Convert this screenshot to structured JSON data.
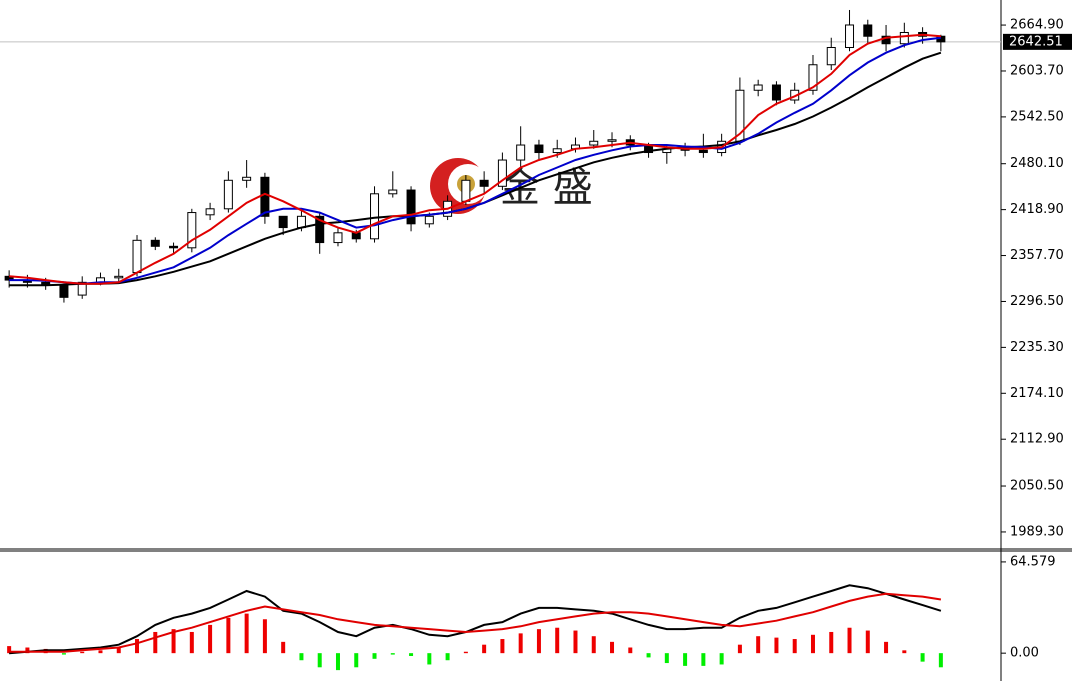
{
  "chart_data": [
    {
      "type": "candlestick",
      "open": [
        2330,
        2325,
        2322,
        2318,
        2305,
        2322,
        2328,
        2335,
        2378,
        2370,
        2368,
        2412,
        2420,
        2458,
        2462,
        2410,
        2395,
        2410,
        2375,
        2388,
        2380,
        2440,
        2445,
        2400,
        2410,
        2430,
        2458,
        2450,
        2485,
        2505,
        2495,
        2500,
        2505,
        2510,
        2512,
        2505,
        2495,
        2500,
        2498,
        2495,
        2510,
        2578,
        2585,
        2565,
        2578,
        2612,
        2635,
        2665,
        2650,
        2640,
        2655,
        2650
      ],
      "high": [
        2338,
        2332,
        2328,
        2320,
        2330,
        2335,
        2340,
        2385,
        2382,
        2375,
        2420,
        2428,
        2470,
        2485,
        2468,
        2405,
        2418,
        2415,
        2395,
        2392,
        2450,
        2470,
        2450,
        2415,
        2438,
        2465,
        2470,
        2495,
        2530,
        2512,
        2512,
        2515,
        2525,
        2522,
        2518,
        2508,
        2505,
        2508,
        2520,
        2520,
        2595,
        2592,
        2590,
        2588,
        2625,
        2648,
        2685,
        2672,
        2665,
        2668,
        2662,
        2652
      ],
      "low": [
        2315,
        2315,
        2312,
        2295,
        2300,
        2318,
        2322,
        2330,
        2365,
        2360,
        2362,
        2405,
        2415,
        2448,
        2400,
        2385,
        2390,
        2360,
        2370,
        2375,
        2375,
        2435,
        2390,
        2395,
        2405,
        2425,
        2440,
        2445,
        2475,
        2485,
        2488,
        2495,
        2500,
        2502,
        2498,
        2488,
        2480,
        2490,
        2488,
        2490,
        2505,
        2570,
        2558,
        2560,
        2572,
        2605,
        2630,
        2640,
        2630,
        2635,
        2640,
        2630
      ],
      "close": [
        2325,
        2322,
        2318,
        2302,
        2322,
        2328,
        2330,
        2378,
        2370,
        2368,
        2415,
        2420,
        2458,
        2462,
        2410,
        2395,
        2410,
        2375,
        2388,
        2380,
        2440,
        2445,
        2400,
        2410,
        2430,
        2458,
        2450,
        2485,
        2505,
        2495,
        2500,
        2505,
        2510,
        2512,
        2505,
        2495,
        2500,
        2498,
        2495,
        2510,
        2578,
        2585,
        2565,
        2578,
        2612,
        2635,
        2665,
        2650,
        2640,
        2655,
        2650,
        2642.51
      ],
      "up_color": "#ffffff",
      "down_color": "#000000",
      "series": [
        {
          "color": "#000000",
          "values": [
            2318,
            2318,
            2318,
            2319,
            2320,
            2320,
            2321,
            2325,
            2330,
            2336,
            2343,
            2350,
            2360,
            2370,
            2380,
            2388,
            2395,
            2400,
            2402,
            2405,
            2408,
            2410,
            2410,
            2412,
            2415,
            2420,
            2428,
            2438,
            2448,
            2458,
            2466,
            2474,
            2482,
            2488,
            2493,
            2497,
            2500,
            2502,
            2503,
            2505,
            2510,
            2518,
            2525,
            2533,
            2543,
            2555,
            2568,
            2582,
            2595,
            2608,
            2620,
            2628
          ]
        },
        {
          "color": "#0000cc",
          "values": [
            2325,
            2325,
            2324,
            2322,
            2320,
            2322,
            2322,
            2328,
            2335,
            2342,
            2355,
            2368,
            2385,
            2400,
            2415,
            2420,
            2420,
            2415,
            2405,
            2395,
            2398,
            2405,
            2410,
            2412,
            2415,
            2420,
            2428,
            2440,
            2452,
            2465,
            2475,
            2485,
            2492,
            2498,
            2503,
            2505,
            2505,
            2503,
            2502,
            2500,
            2508,
            2520,
            2535,
            2548,
            2560,
            2578,
            2598,
            2615,
            2628,
            2638,
            2645,
            2648
          ]
        },
        {
          "color": "#e00000",
          "values": [
            2330,
            2328,
            2325,
            2322,
            2320,
            2320,
            2322,
            2335,
            2348,
            2360,
            2378,
            2392,
            2410,
            2428,
            2440,
            2430,
            2418,
            2405,
            2395,
            2388,
            2400,
            2410,
            2412,
            2418,
            2420,
            2430,
            2440,
            2458,
            2475,
            2485,
            2492,
            2500,
            2502,
            2505,
            2508,
            2505,
            2502,
            2500,
            2500,
            2502,
            2520,
            2545,
            2560,
            2570,
            2582,
            2600,
            2625,
            2640,
            2648,
            2650,
            2652,
            2650
          ]
        }
      ],
      "current_price": 2642.51,
      "ylim": [
        1967.9,
        2698.3
      ],
      "yticks": [
        {
          "value": 2664.9,
          "label": "2664.90"
        },
        {
          "value": 2603.7,
          "label": "2603.70"
        },
        {
          "value": 2542.5,
          "label": "2542.50"
        },
        {
          "value": 2480.1,
          "label": "2480.10"
        },
        {
          "value": 2418.9,
          "label": "2418.90"
        },
        {
          "value": 2357.7,
          "label": "2357.70"
        },
        {
          "value": 2296.5,
          "label": "2296.50"
        },
        {
          "value": 2235.3,
          "label": "2235.30"
        },
        {
          "value": 2174.1,
          "label": "2174.10"
        },
        {
          "value": 2112.9,
          "label": "2112.90"
        },
        {
          "value": 2050.5,
          "label": "2050.50"
        },
        {
          "value": 1989.3,
          "label": "1989.30"
        }
      ],
      "watermark": "金 盛"
    },
    {
      "type": "macd",
      "values": [
        5,
        4,
        3,
        -1,
        1,
        2,
        4,
        10,
        15,
        17,
        15,
        20,
        25,
        28,
        24,
        8,
        -5,
        -10,
        -12,
        -10,
        -4,
        -1,
        -2,
        -8,
        -5,
        1,
        6,
        10,
        14,
        17,
        18,
        16,
        12,
        8,
        4,
        -3,
        -7,
        -9,
        -9,
        -8,
        6,
        12,
        11,
        10,
        13,
        15,
        18,
        16,
        8,
        2,
        -6,
        -10
      ],
      "positive_color": "#ee0000",
      "negative_color": "#00ee00",
      "series": [
        {
          "color": "#000000",
          "values": [
            0,
            1,
            2,
            2,
            3,
            4,
            6,
            12,
            20,
            25,
            28,
            32,
            38,
            44,
            40,
            30,
            28,
            22,
            15,
            12,
            18,
            20,
            17,
            13,
            12,
            15,
            20,
            22,
            28,
            32,
            32,
            31,
            30,
            28,
            24,
            20,
            17,
            17,
            18,
            18,
            25,
            30,
            32,
            36,
            40,
            44,
            48,
            46,
            42,
            38,
            34,
            30
          ]
        },
        {
          "color": "#e00000",
          "values": [
            1,
            1,
            1,
            1,
            2,
            3,
            4,
            7,
            11,
            15,
            18,
            22,
            26,
            30,
            33,
            31,
            29,
            27,
            24,
            22,
            20,
            19,
            18,
            17,
            16,
            15,
            16,
            17,
            19,
            22,
            24,
            26,
            28,
            29,
            29,
            28,
            26,
            24,
            22,
            20,
            19,
            21,
            23,
            26,
            29,
            33,
            37,
            40,
            42,
            41,
            40,
            38
          ]
        }
      ],
      "ylim": [
        -19.7,
        72.3
      ],
      "yticks": [
        64.579,
        {
          "value": 0,
          "label": "0.00"
        }
      ]
    }
  ]
}
